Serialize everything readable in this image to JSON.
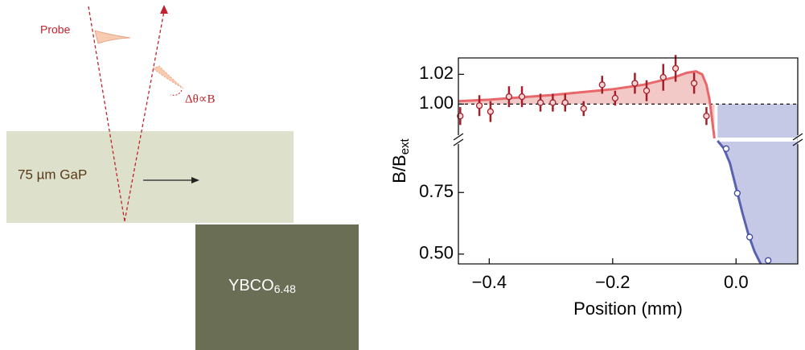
{
  "diagram": {
    "probe": "Probe",
    "angle": "Δθ∝B",
    "gap": "75 µm GaP",
    "ybco": {
      "main": "YBCO",
      "sub": "6.48"
    }
  },
  "chart_data": {
    "type": "broken-line",
    "xlabel": "Position (mm)",
    "ylabel": {
      "main": "B/B",
      "sub": "ext"
    },
    "xlim": [
      -0.45,
      0.1
    ],
    "ylim": [
      0.46,
      1.031
    ],
    "ybreak": [
      0.96,
      0.977
    ],
    "xticks": [
      {
        "value": -0.4,
        "label": "−0.4"
      },
      {
        "value": -0.2,
        "label": "−0.2"
      },
      {
        "value": 0,
        "label": "0.0"
      }
    ],
    "yticks": [
      1.02,
      {
        "value": 1,
        "label": "1.00"
      },
      0.75,
      {
        "value": 0.5,
        "label": "0.50"
      }
    ],
    "reference": 1,
    "fits": [
      {
        "color": "#e8676b",
        "fill": "#f3c9c8",
        "x": [
          -0.45,
          -0.4,
          -0.3,
          -0.2,
          -0.15,
          -0.1,
          -0.08,
          -0.065,
          -0.055,
          -0.048,
          -0.043,
          -0.039,
          -0.035
        ],
        "values": [
          1.002,
          1.003,
          1.006,
          1.01,
          1.013,
          1.018,
          1.021,
          1.022,
          1.02,
          1.013,
          1.003,
          0.99,
          0.977
        ]
      },
      {
        "color": "#5862b2",
        "fill": "#c6c9e6",
        "x": [
          -0.03,
          -0.02,
          -0.01,
          0,
          0.01,
          0.02,
          0.03,
          0.04
        ],
        "values": [
          0.96,
          0.93,
          0.87,
          0.77,
          0.67,
          0.58,
          0.51,
          0.46
        ]
      }
    ],
    "points": [
      {
        "color": "#a3202a",
        "face": "#f6d3d3",
        "x": [
          -0.447,
          -0.416,
          -0.398,
          -0.368,
          -0.347,
          -0.317,
          -0.297,
          -0.277,
          -0.247,
          -0.217,
          -0.196,
          -0.164,
          -0.145,
          -0.118,
          -0.098,
          -0.068,
          -0.048
        ],
        "values": [
          0.992,
          0.999,
          0.995,
          1.005,
          1.005,
          1.001,
          1.001,
          1.001,
          0.997,
          1.013,
          1.004,
          1.014,
          1.009,
          1.018,
          1.024,
          1.014,
          0.992
        ],
        "errors": [
          0.006,
          0.007,
          0.007,
          0.007,
          0.007,
          0.006,
          0.006,
          0.006,
          0.005,
          0.006,
          0.005,
          0.007,
          0.007,
          0.009,
          0.009,
          0.007,
          0.006
        ]
      },
      {
        "color": "#3b46a2",
        "face": "#ffffff",
        "x": [
          -0.016,
          0.002,
          0.022,
          0.052
        ],
        "values": [
          0.928,
          0.747,
          0.569,
          0.474
        ]
      }
    ]
  }
}
